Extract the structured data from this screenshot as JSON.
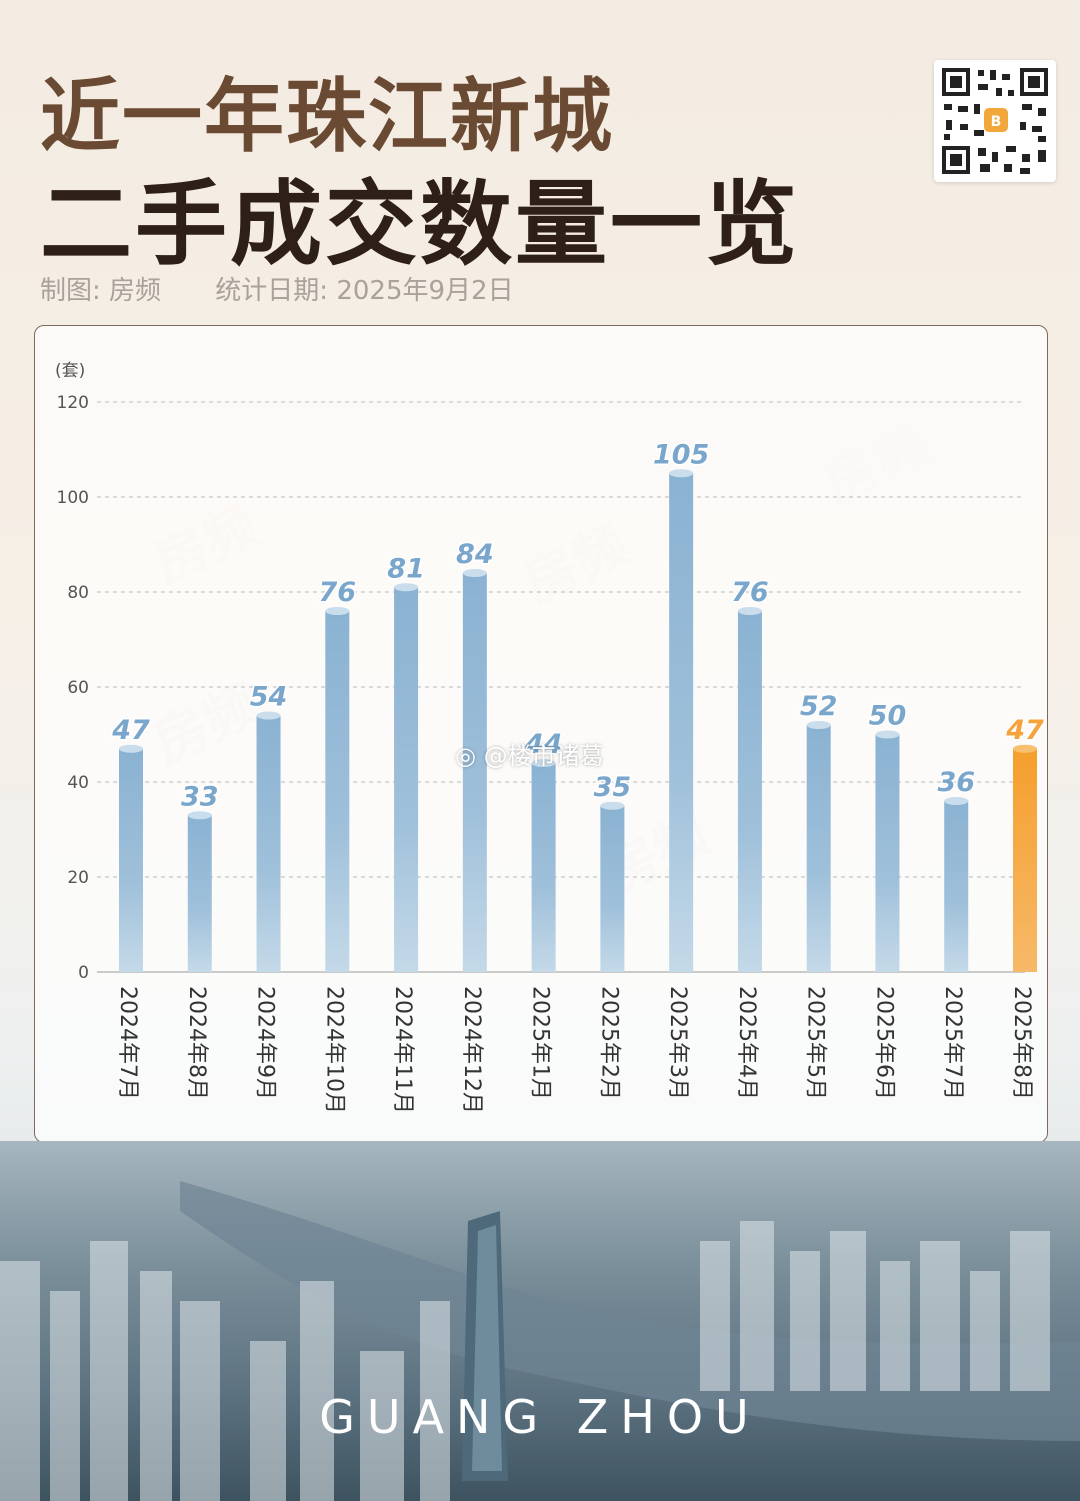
{
  "header": {
    "title_line1": "近一年珠江新城",
    "title_line2": "二手成交数量一览",
    "maker": "制图: 房频",
    "stat_date": "统计日期: 2025年9月2日"
  },
  "watermark": {
    "text": "房频",
    "weibo": "@楼市诸葛"
  },
  "footer": {
    "city_label": "GUANG ZHOU"
  },
  "colors": {
    "bar": "#8fb4d3",
    "bar_highlight": "#f5a33a",
    "label": "#7aa6cc",
    "label_highlight": "#f5a33a"
  },
  "chart_data": {
    "type": "bar",
    "unit": "(套)",
    "categories": [
      "2024年7月",
      "2024年8月",
      "2024年9月",
      "2024年10月",
      "2024年11月",
      "2024年12月",
      "2025年1月",
      "2025年2月",
      "2025年3月",
      "2025年4月",
      "2025年5月",
      "2025年6月",
      "2025年7月",
      "2025年8月"
    ],
    "values": [
      47,
      33,
      54,
      76,
      81,
      84,
      44,
      35,
      105,
      76,
      52,
      50,
      36,
      47
    ],
    "ylim": [
      0,
      120
    ],
    "yticks": [
      0,
      20,
      40,
      60,
      80,
      100,
      120
    ],
    "highlight_index": 13,
    "grid": true
  }
}
